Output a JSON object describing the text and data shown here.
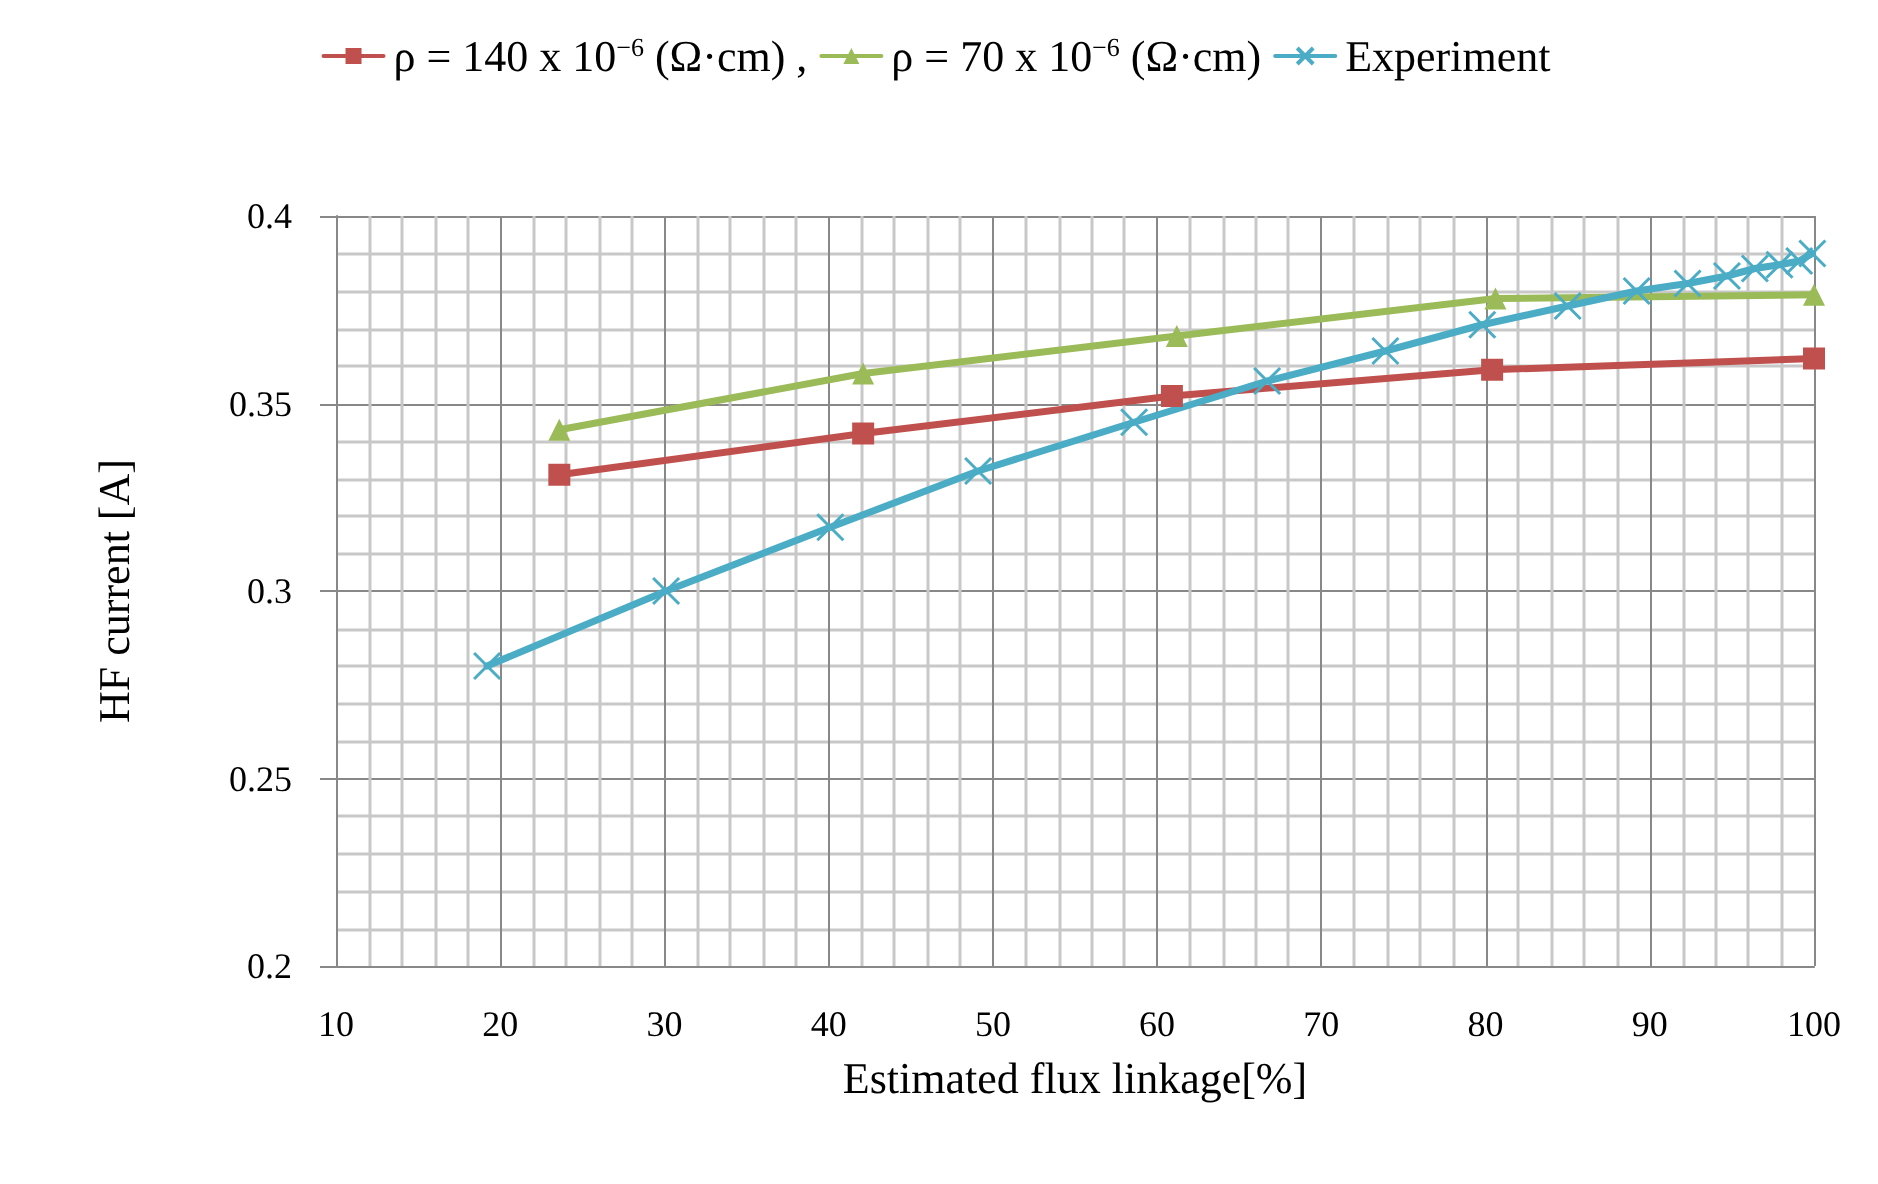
{
  "chart_data": {
    "type": "line",
    "xlabel": "Estimated flux linkage[%]",
    "ylabel": "HF current [A]",
    "xlim": [
      10,
      100
    ],
    "xticks": [
      10,
      20,
      30,
      40,
      50,
      60,
      70,
      80,
      90,
      100
    ],
    "ylim": [
      0.2,
      0.4
    ],
    "yticks": [
      0.2,
      0.25,
      0.3,
      0.35,
      0.4
    ],
    "grid": true,
    "legend": "top",
    "series": [
      {
        "name": "ρ = 140 x 10$^{−6}$ (Ω·cm) ,",
        "color": "#c0504d",
        "marker": "square",
        "x": [
          23.6,
          42.1,
          60.9,
          80.4,
          100
        ],
        "values": [
          0.331,
          0.342,
          0.352,
          0.359,
          0.362
        ]
      },
      {
        "name": "ρ = 70 x 10$^{−6}$ (Ω·cm)",
        "color": "#9bbb59",
        "marker": "triangle",
        "x": [
          23.6,
          42.1,
          61.2,
          80.6,
          100
        ],
        "values": [
          0.343,
          0.358,
          0.368,
          0.378,
          0.379
        ]
      },
      {
        "name": "Experiment",
        "color": "#4bacc6",
        "marker": "cross",
        "x": [
          19.2,
          30.1,
          40.1,
          49.1,
          58.6,
          66.7,
          73.9,
          79.8,
          85.0,
          89.2,
          92.3,
          94.7,
          96.4,
          97.9,
          99.1,
          99.9
        ],
        "values": [
          0.28,
          0.3,
          0.317,
          0.332,
          0.345,
          0.356,
          0.364,
          0.371,
          0.376,
          0.38,
          0.382,
          0.384,
          0.386,
          0.387,
          0.388,
          0.39
        ]
      }
    ]
  }
}
